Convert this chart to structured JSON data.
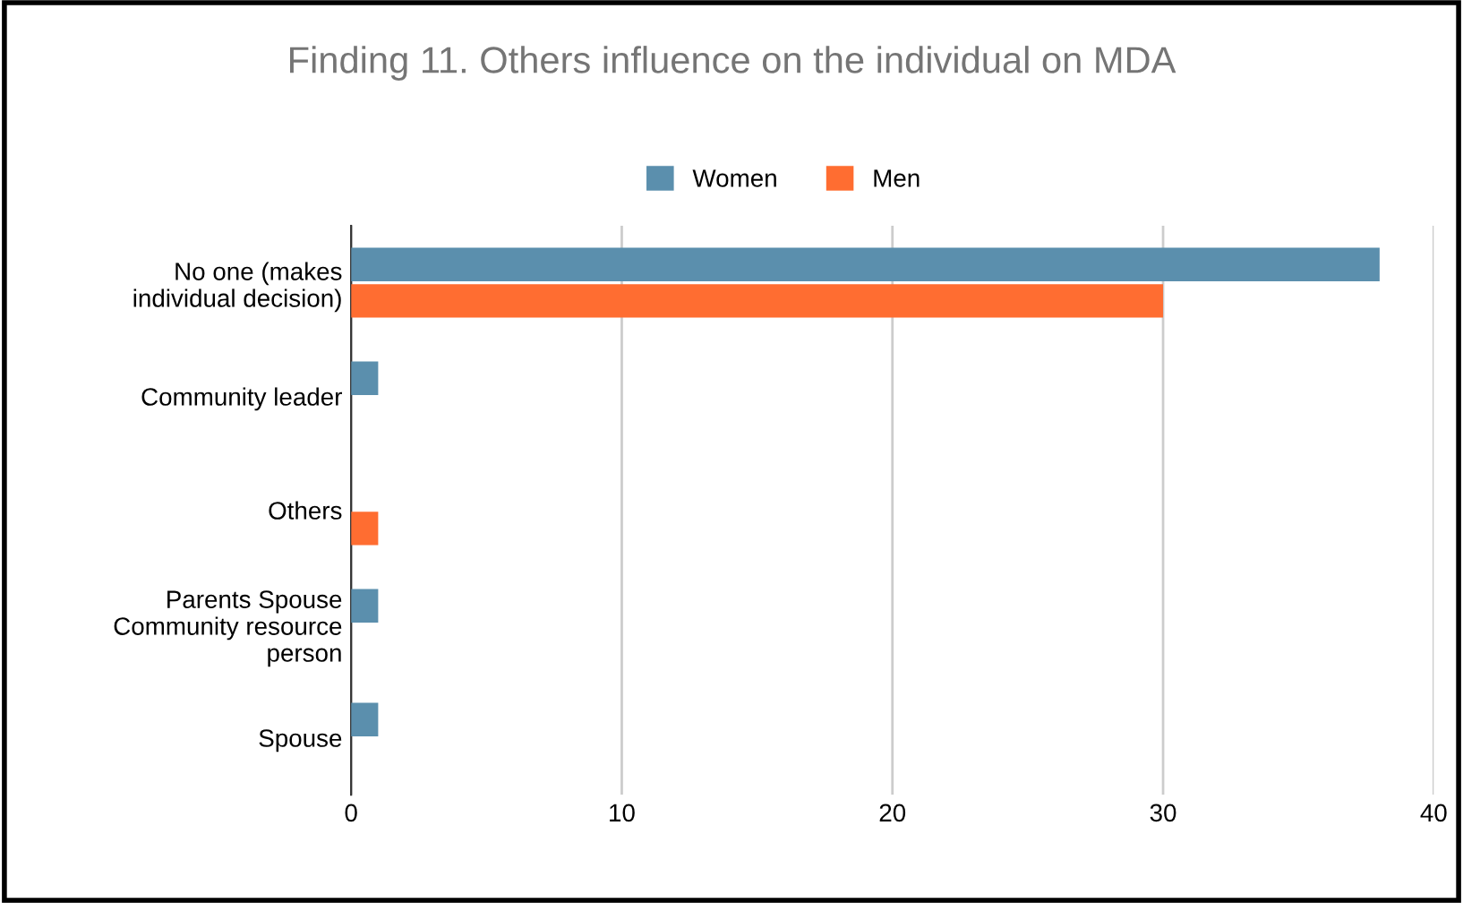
{
  "chart_data": {
    "type": "bar",
    "orientation": "horizontal",
    "title": "Finding 11. Others influence on the individual on MDA",
    "categories": [
      "No one (makes individual decision)",
      "Community leader",
      "Others",
      "Parents Spouse Community resource person",
      "Spouse"
    ],
    "series": [
      {
        "name": "Women",
        "color": "#5b8fad",
        "values": [
          38,
          1,
          0,
          1,
          1
        ]
      },
      {
        "name": "Men",
        "color": "#ff6d31",
        "values": [
          30,
          0,
          1,
          0,
          0
        ]
      }
    ],
    "xlim": [
      0,
      40
    ],
    "xticks": [
      0,
      10,
      20,
      30,
      40
    ],
    "grid": "x",
    "legend": "top"
  }
}
